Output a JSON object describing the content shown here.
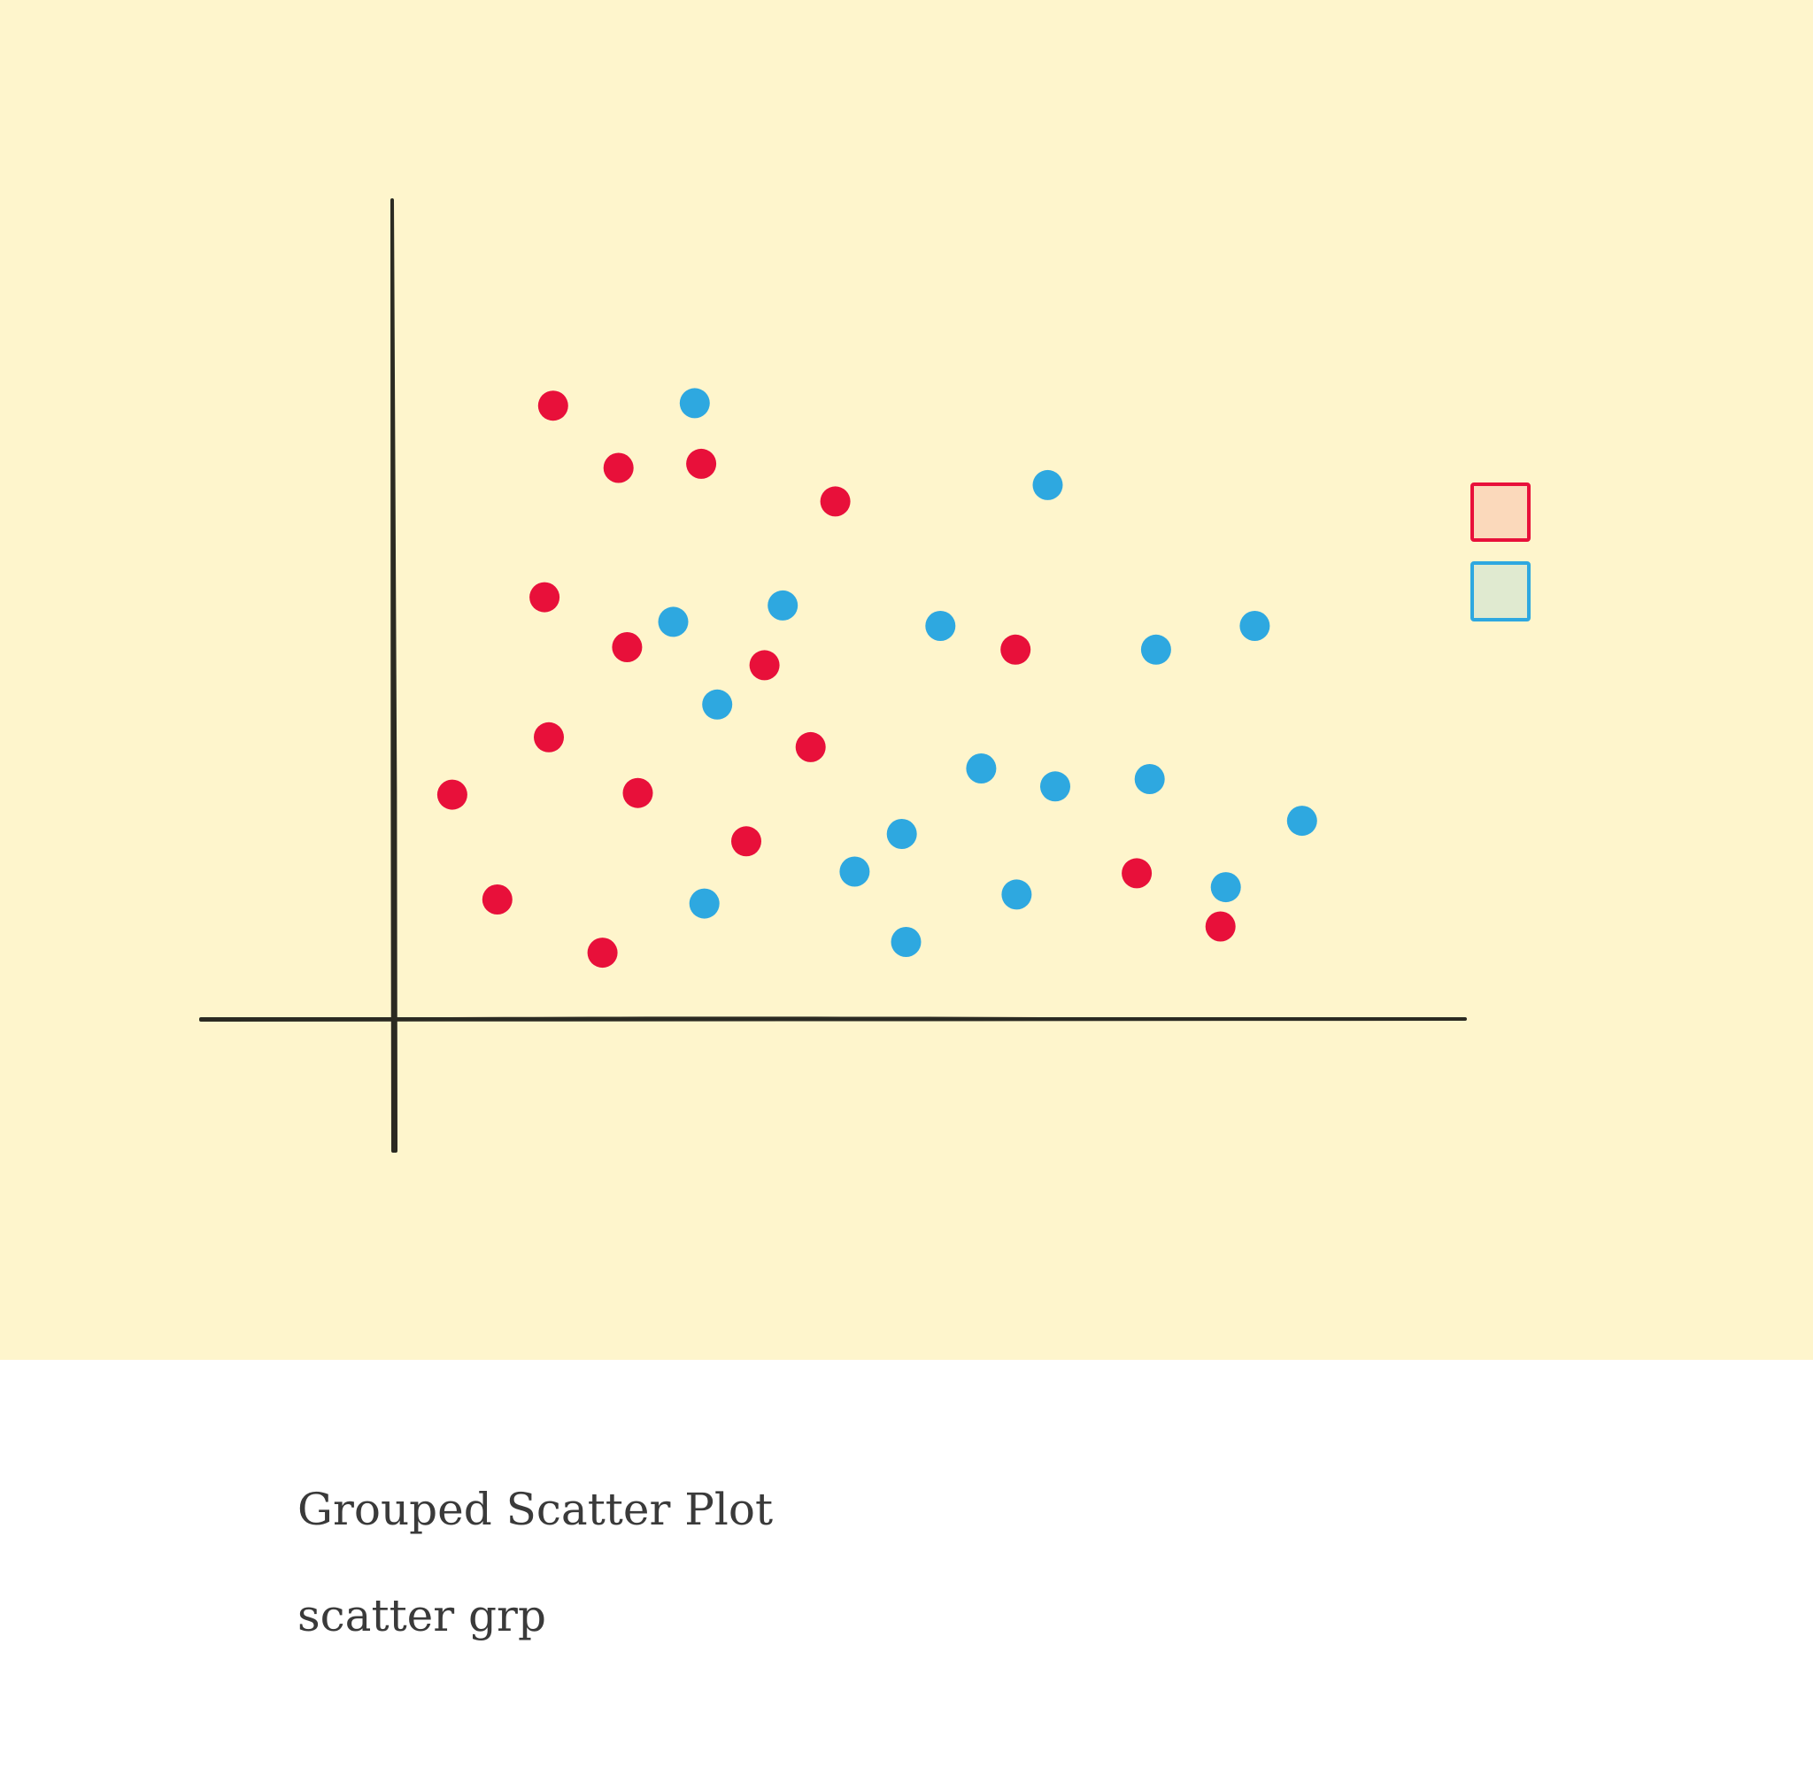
{
  "caption": {
    "title": "Grouped Scatter Plot",
    "subtitle": "scatter grp"
  },
  "colors": {
    "canvas_background": "#fef5cc",
    "axis": "#2b2a22",
    "group_red": "#e8103a",
    "group_blue": "#2ea8e0",
    "legend_red_fill": "#fbd9bb",
    "legend_blue_fill": "#e0ead0"
  },
  "chart_data": {
    "type": "scatter",
    "title": "",
    "xlabel": "",
    "ylabel": "",
    "xlim": [
      0,
      100
    ],
    "ylim": [
      0,
      100
    ],
    "grid": false,
    "legend": "right",
    "series": [
      {
        "color": "#e8103a",
        "points": [
          {
            "x": 15.0,
            "y": 74.9
          },
          {
            "x": 21.1,
            "y": 67.3
          },
          {
            "x": 28.8,
            "y": 67.8
          },
          {
            "x": 41.3,
            "y": 63.2
          },
          {
            "x": 14.2,
            "y": 51.5
          },
          {
            "x": 21.9,
            "y": 45.4
          },
          {
            "x": 34.7,
            "y": 43.2
          },
          {
            "x": 14.6,
            "y": 34.4
          },
          {
            "x": 39.0,
            "y": 33.2
          },
          {
            "x": 5.6,
            "y": 27.4
          },
          {
            "x": 22.9,
            "y": 27.6
          },
          {
            "x": 33.0,
            "y": 21.7
          },
          {
            "x": 9.8,
            "y": 14.6
          },
          {
            "x": 19.6,
            "y": 8.1
          },
          {
            "x": 58.1,
            "y": 45.1
          },
          {
            "x": 69.4,
            "y": 17.8
          },
          {
            "x": 77.2,
            "y": 11.3
          }
        ]
      },
      {
        "color": "#2ea8e0",
        "points": [
          {
            "x": 28.2,
            "y": 75.2
          },
          {
            "x": 61.1,
            "y": 65.2
          },
          {
            "x": 26.2,
            "y": 48.5
          },
          {
            "x": 36.4,
            "y": 50.5
          },
          {
            "x": 51.1,
            "y": 48.0
          },
          {
            "x": 30.3,
            "y": 38.4
          },
          {
            "x": 71.2,
            "y": 45.1
          },
          {
            "x": 80.4,
            "y": 48.0
          },
          {
            "x": 54.9,
            "y": 30.6
          },
          {
            "x": 61.8,
            "y": 28.4
          },
          {
            "x": 70.6,
            "y": 29.3
          },
          {
            "x": 47.5,
            "y": 22.6
          },
          {
            "x": 43.1,
            "y": 18.0
          },
          {
            "x": 29.1,
            "y": 14.1
          },
          {
            "x": 58.2,
            "y": 15.2
          },
          {
            "x": 77.7,
            "y": 16.1
          },
          {
            "x": 84.8,
            "y": 24.2
          },
          {
            "x": 47.9,
            "y": 9.4
          }
        ]
      }
    ]
  }
}
